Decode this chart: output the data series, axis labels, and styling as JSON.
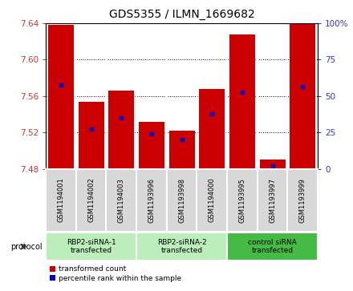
{
  "title": "GDS5355 / ILMN_1669682",
  "samples": [
    "GSM1194001",
    "GSM1194002",
    "GSM1194003",
    "GSM1193996",
    "GSM1193998",
    "GSM1194000",
    "GSM1193995",
    "GSM1193997",
    "GSM1193999"
  ],
  "red_values": [
    7.638,
    7.554,
    7.566,
    7.532,
    7.522,
    7.568,
    7.628,
    7.49,
    7.64
  ],
  "blue_values": [
    7.572,
    7.524,
    7.536,
    7.518,
    7.512,
    7.54,
    7.564,
    7.483,
    7.57
  ],
  "ylim_left": [
    7.48,
    7.64
  ],
  "ylim_right": [
    0,
    100
  ],
  "yticks_left": [
    7.48,
    7.52,
    7.56,
    7.6,
    7.64
  ],
  "yticks_right": [
    0,
    25,
    50,
    75,
    100
  ],
  "bar_bottom": 7.48,
  "groups": [
    {
      "label": "RBP2-siRNA-1\ntransfected",
      "start": 0,
      "end": 2,
      "color": "#bbeebb"
    },
    {
      "label": "RBP2-siRNA-2\ntransfected",
      "start": 3,
      "end": 5,
      "color": "#bbeebb"
    },
    {
      "label": "control siRNA\ntransfected",
      "start": 6,
      "end": 8,
      "color": "#44bb44"
    }
  ],
  "red_color": "#cc0000",
  "blue_color": "#0000cc",
  "bar_width": 0.85,
  "protocol_label": "protocol",
  "legend_red": "transformed count",
  "legend_blue": "percentile rank within the sample",
  "tick_label_color_left": "#cc3333",
  "tick_label_color_right": "#3333cc",
  "plot_bg": "#ffffff",
  "sample_box_color": "#d8d8d8"
}
